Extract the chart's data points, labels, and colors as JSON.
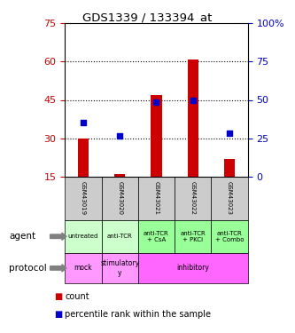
{
  "title": "GDS1339 / 133394_at",
  "samples": [
    "GSM43019",
    "GSM43020",
    "GSM43021",
    "GSM43022",
    "GSM43023"
  ],
  "bar_bottom": [
    15,
    15,
    15,
    15,
    15
  ],
  "bar_top": [
    30,
    16,
    47,
    61,
    22
  ],
  "bar_color": "#cc0000",
  "dot_values": [
    36,
    31,
    44,
    45,
    32
  ],
  "dot_color": "#0000cc",
  "ylim": [
    15,
    75
  ],
  "y_left_ticks": [
    15,
    30,
    45,
    60,
    75
  ],
  "y_right_ticks": [
    0,
    25,
    50,
    75,
    100
  ],
  "y_right_tick_positions": [
    15,
    30,
    45,
    60,
    75
  ],
  "grid_values": [
    30,
    45,
    60
  ],
  "agent_labels": [
    "untreated",
    "anti-TCR",
    "anti-TCR\n+ CsA",
    "anti-TCR\n+ PKCi",
    "anti-TCR\n+ Combo"
  ],
  "agent_colors": [
    "#ccffcc",
    "#ccffcc",
    "#99ff99",
    "#99ff99",
    "#99ff99"
  ],
  "protocol_groups": [
    [
      0,
      0,
      "mock",
      "#ff99ff"
    ],
    [
      1,
      1,
      "stimulatory\ny",
      "#ff99ff"
    ],
    [
      2,
      4,
      "inhibitory",
      "#ff66ff"
    ]
  ],
  "sample_bg_color": "#cccccc",
  "legend_count_color": "#cc0000",
  "legend_pct_color": "#0000cc",
  "legend_count_label": "count",
  "legend_pct_label": "percentile rank within the sample",
  "right_axis_color": "#0000cc",
  "left_axis_color": "#cc0000",
  "right_tick_labels": [
    "0",
    "25",
    "50",
    "75",
    "100%"
  ]
}
